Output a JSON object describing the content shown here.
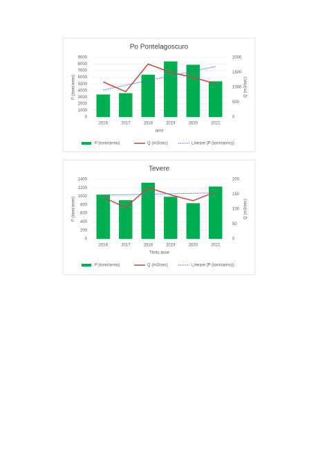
{
  "chart_data": [
    {
      "type": "bar",
      "title": "Po Pontelagoscuro",
      "x_label": "anni",
      "y_label": "P (tonn/anno)",
      "y2_label": "Q (m3/sec)",
      "categories": [
        "2016",
        "2017",
        "2018",
        "2019",
        "2020",
        "2021"
      ],
      "series": [
        {
          "name": "P (tonn/anno)",
          "type": "bar",
          "color": "#00b050",
          "values": [
            3400,
            3600,
            6400,
            8400,
            7900,
            5400
          ]
        },
        {
          "name": "Q (m3/sec)",
          "type": "line",
          "color": "#c0504d",
          "axis": "y2",
          "values": [
            1180,
            850,
            1780,
            1500,
            1330,
            1120
          ]
        },
        {
          "name": "Lineare (P (tonn/anno))",
          "type": "line",
          "linestyle": "dotted",
          "color": "#4472c4",
          "values": [
            4080,
            4792,
            5504,
            6216,
            6928,
            7640
          ]
        }
      ],
      "ylim": [
        0,
        9000
      ],
      "yticks": [
        0,
        1000,
        2000,
        3000,
        4000,
        5000,
        6000,
        7000,
        8000,
        9000
      ],
      "y2lim": [
        0,
        2000
      ],
      "y2ticks": [
        0,
        500,
        1000,
        1500,
        2000
      ],
      "legend": "bottom"
    },
    {
      "type": "bar",
      "title": "Tevere",
      "x_label": "Titolo asse",
      "y_label": "P (tonn/anno)",
      "y2_label": "Q (m3/sec)",
      "categories": [
        "2016",
        "2017",
        "2018",
        "2019",
        "2020",
        "2021"
      ],
      "series": [
        {
          "name": "P (tonn/anno)",
          "type": "bar",
          "color": "#00b050",
          "values": [
            1040,
            910,
            1320,
            990,
            840,
            1230
          ]
        },
        {
          "name": "Q (m3/sec)",
          "type": "line",
          "color": "#c0504d",
          "axis": "y2",
          "values": [
            140,
            105,
            172,
            148,
            128,
            158
          ]
        },
        {
          "name": "Lineare (P (tonn/anno))",
          "type": "line",
          "linestyle": "dotted",
          "color": "#4472c4",
          "values": [
            1030,
            1040,
            1050,
            1060,
            1070,
            1080
          ]
        }
      ],
      "ylim": [
        0,
        1400
      ],
      "yticks": [
        0,
        200,
        400,
        600,
        800,
        1000,
        1200,
        1400
      ],
      "y2lim": [
        0,
        200
      ],
      "y2ticks": [
        0,
        50,
        100,
        150,
        200
      ],
      "legend": "bottom"
    }
  ]
}
